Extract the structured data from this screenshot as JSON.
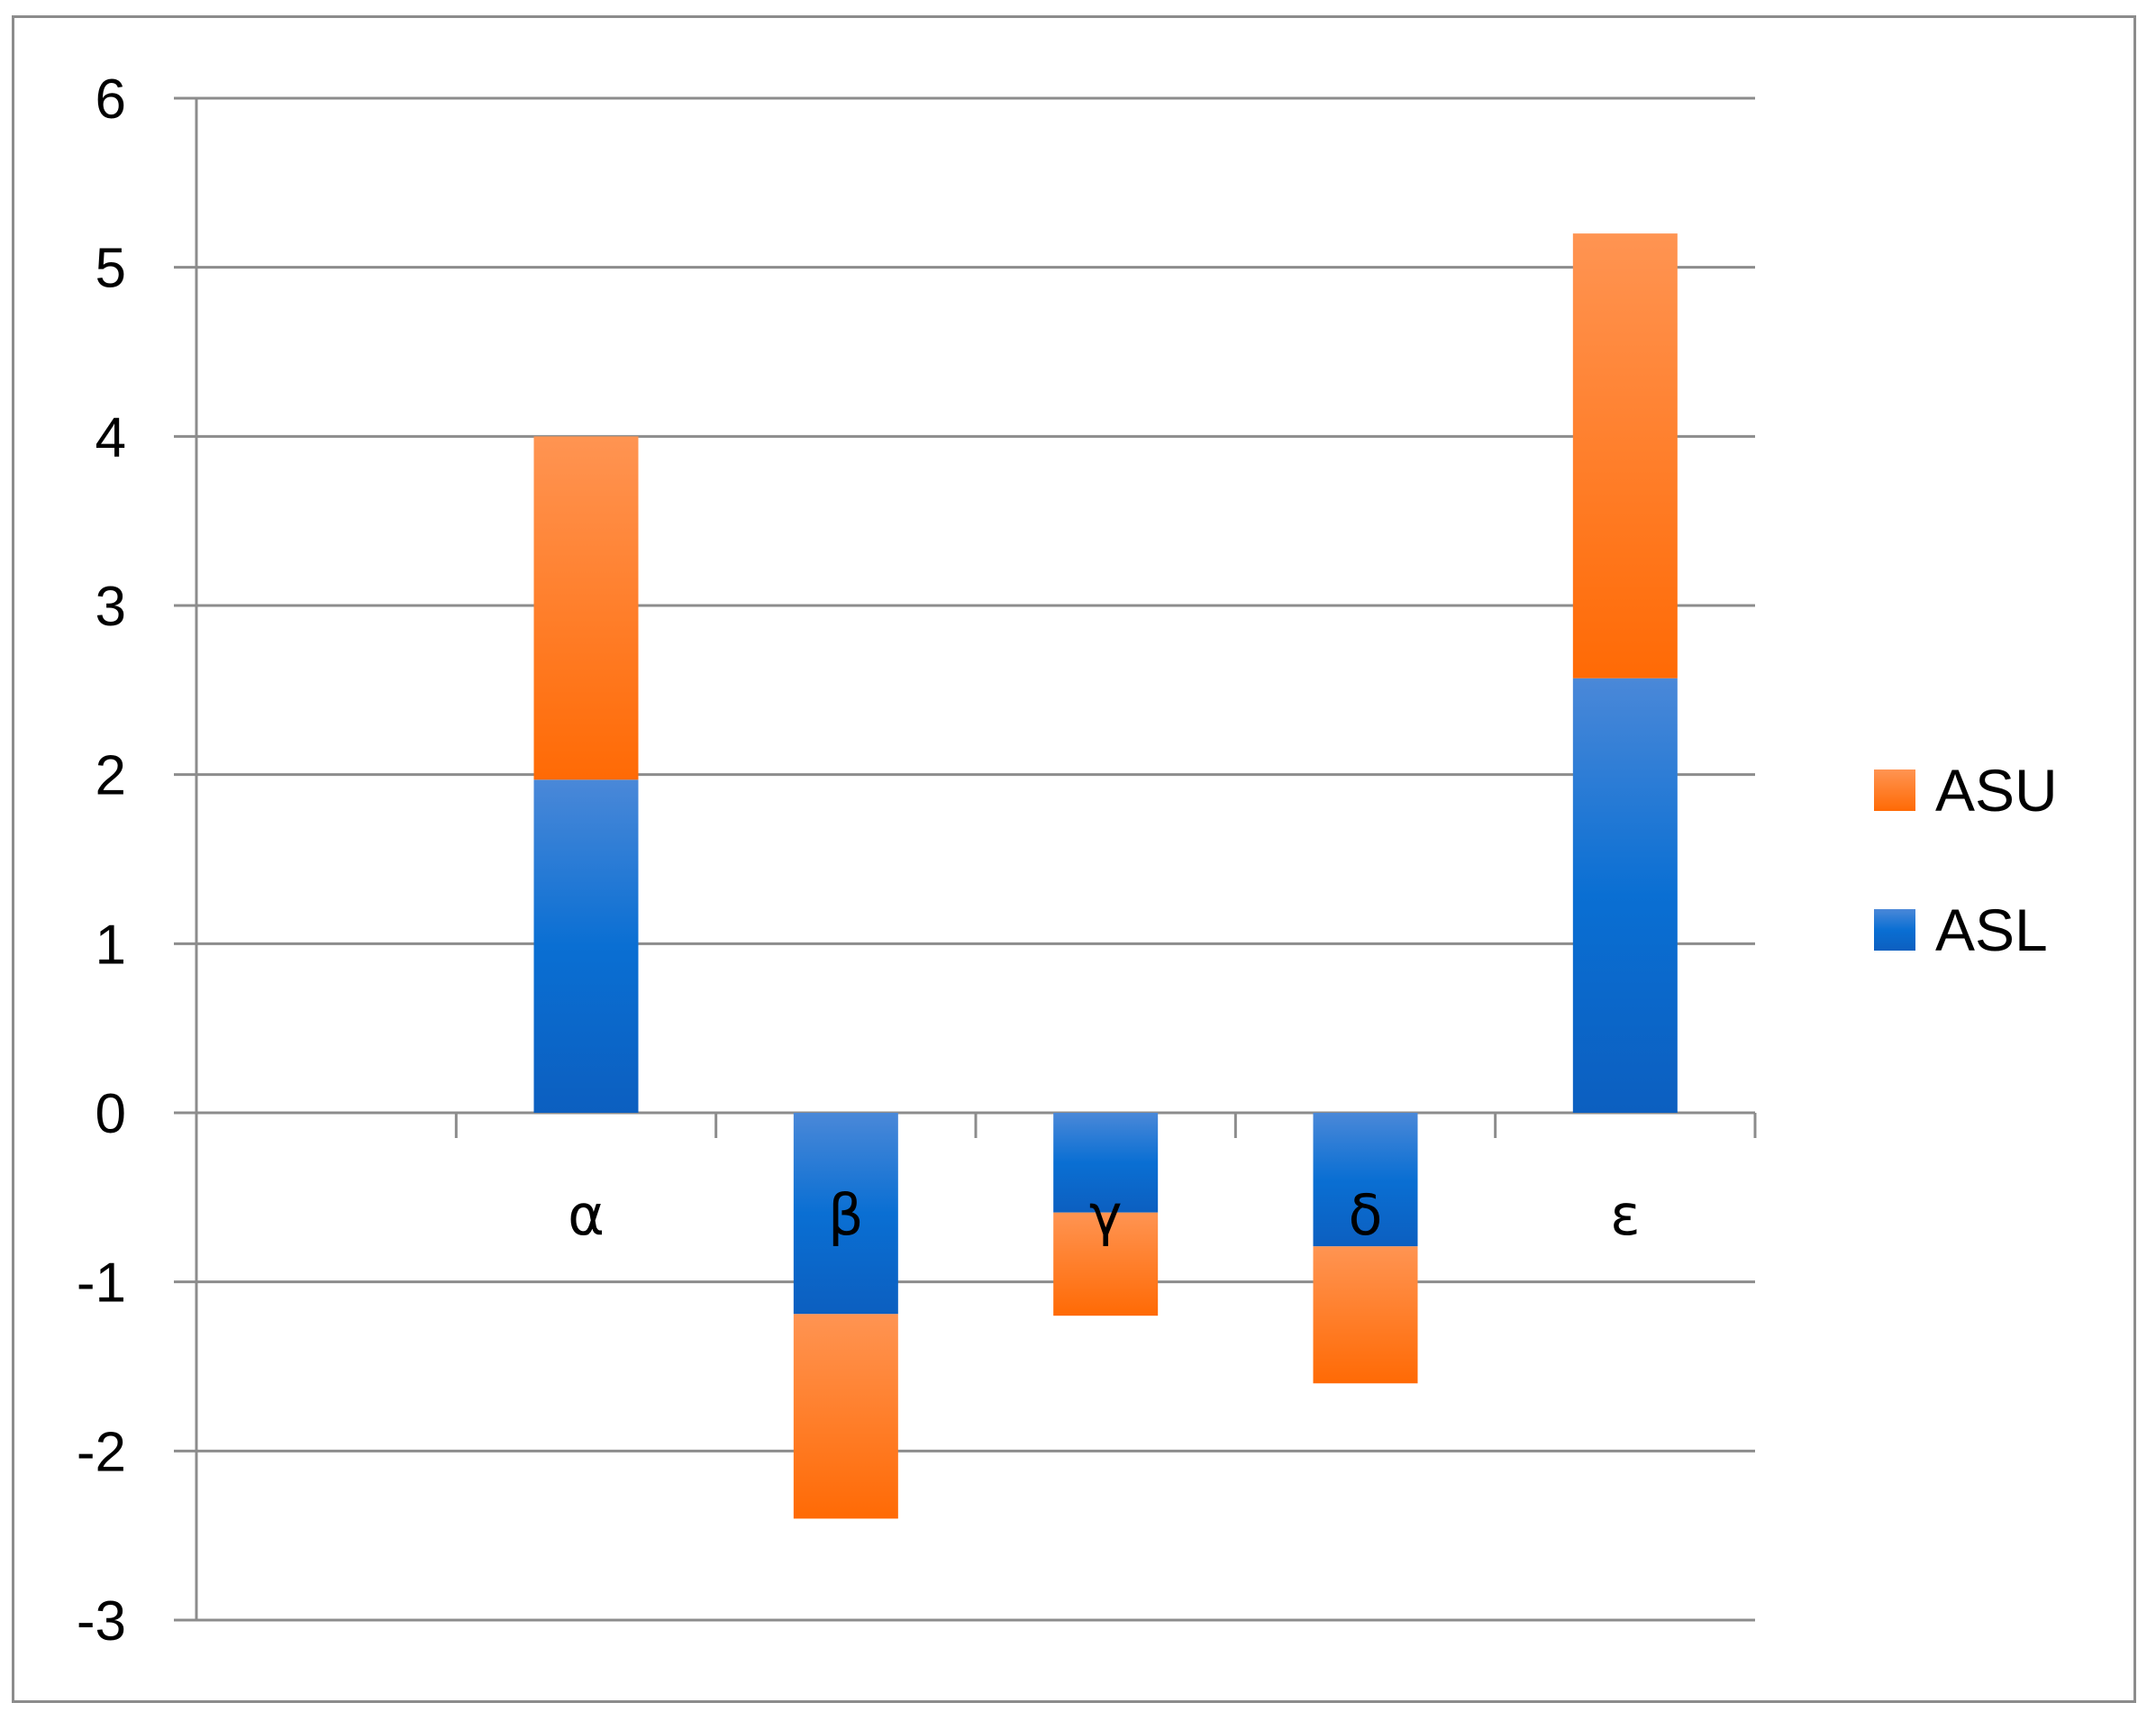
{
  "chart_data": {
    "type": "bar",
    "stacked": true,
    "title": "",
    "xlabel": "",
    "ylabel": "",
    "categories": [
      "α",
      "β",
      "γ",
      "δ",
      "ε"
    ],
    "series": [
      {
        "name": "ASL",
        "values": [
          1.97,
          -1.19,
          -0.59,
          -0.79,
          2.57
        ],
        "color": "#1f6fd1"
      },
      {
        "name": "ASU",
        "values": [
          2.03,
          -1.21,
          -0.61,
          -0.81,
          2.63
        ],
        "color": "#ff7f24"
      }
    ],
    "ylim": [
      -3,
      6
    ],
    "yticks": [
      "6",
      "5",
      "4",
      "3",
      "2",
      "1",
      "0",
      "-1",
      "-2",
      "-3"
    ],
    "grid": true,
    "legend": "right",
    "legend_order": [
      "ASU",
      "ASL"
    ]
  }
}
